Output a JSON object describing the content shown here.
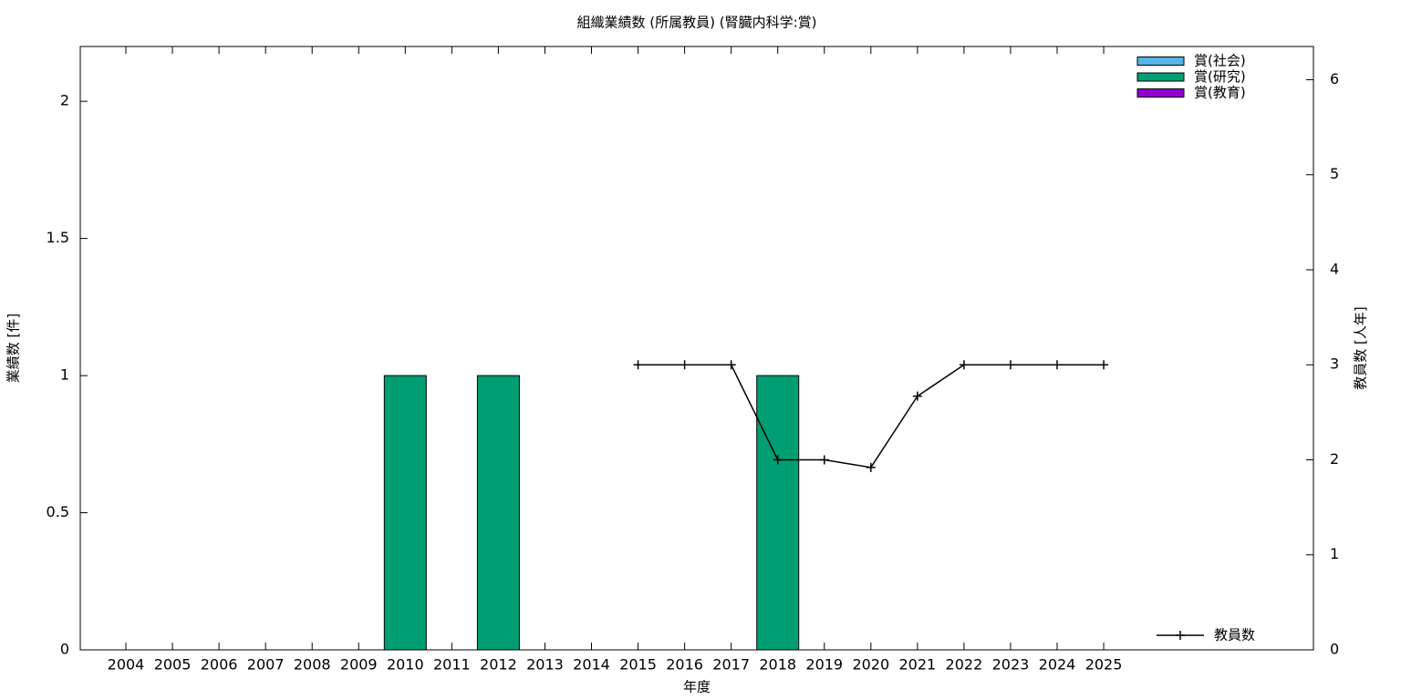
{
  "chart_data": {
    "type": "bar+line",
    "title": "組織業績数 (所属教員) (腎臓内科学:賞)",
    "x_label": "年度",
    "y_label": "業績数 [件]",
    "y2_label": "教員数 [人年]",
    "categories": [
      "2004",
      "2005",
      "2006",
      "2007",
      "2008",
      "2009",
      "2010",
      "2011",
      "2012",
      "2013",
      "2014",
      "2015",
      "2016",
      "2017",
      "2018",
      "2019",
      "2020",
      "2021",
      "2022",
      "2023",
      "2024",
      "2025"
    ],
    "ylim": [
      0,
      2.2
    ],
    "yticks": [
      0,
      0.5,
      1,
      1.5,
      2
    ],
    "y2lim": [
      0,
      6.35
    ],
    "y2ticks": [
      0,
      1,
      2,
      3,
      4,
      5,
      6
    ],
    "stacked": true,
    "series": [
      {
        "name": "賞(社会)",
        "color": "#56b4e9",
        "values": [
          0,
          0,
          0,
          0,
          0,
          0,
          0,
          0,
          0,
          0,
          0,
          0,
          0,
          0,
          0,
          0,
          0,
          0,
          0,
          0,
          0,
          0
        ]
      },
      {
        "name": "賞(研究)",
        "color": "#009e73",
        "values": [
          0,
          0,
          0,
          0,
          0,
          0,
          1,
          0,
          1,
          0,
          0,
          0,
          0,
          0,
          1,
          0,
          0,
          0,
          0,
          0,
          0,
          0
        ]
      },
      {
        "name": "賞(教育)",
        "color": "#9400d3",
        "values": [
          0,
          0,
          0,
          0,
          0,
          0,
          0,
          0,
          0,
          0,
          0,
          0,
          0,
          0,
          0,
          0,
          0,
          0,
          0,
          0,
          0,
          0
        ]
      },
      {
        "name": "教員数",
        "color": "#000000",
        "axis": "y2",
        "type": "line",
        "values": [
          null,
          null,
          null,
          null,
          null,
          null,
          null,
          null,
          null,
          null,
          null,
          3,
          3,
          3,
          2,
          2,
          1.92,
          2.67,
          3,
          3,
          3,
          3
        ]
      }
    ]
  }
}
